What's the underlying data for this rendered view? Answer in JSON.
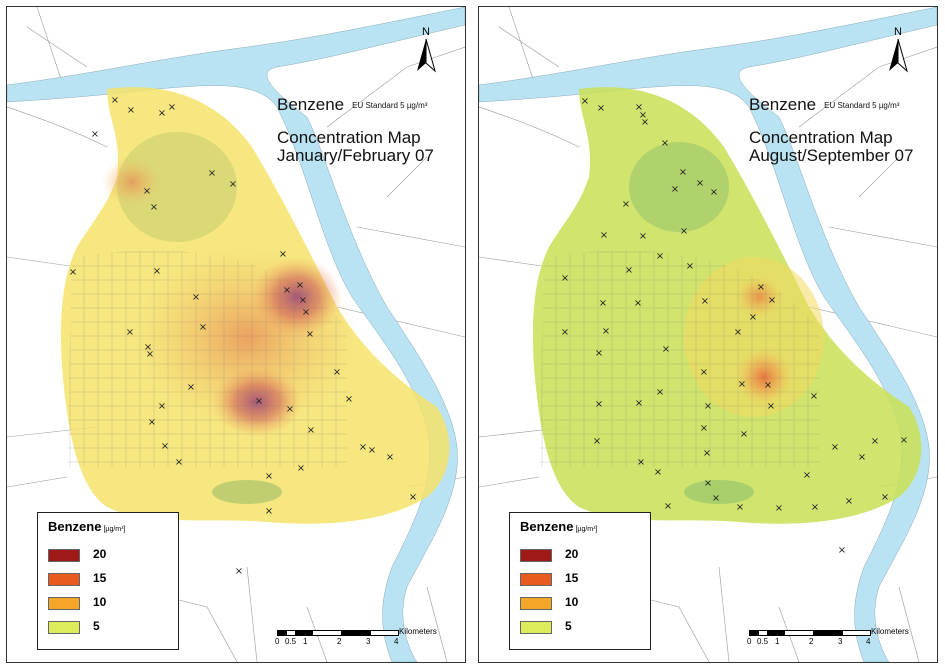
{
  "panels": [
    {
      "id": "left",
      "title": "Benzene",
      "standard": "EU Standard 5 µg/m³",
      "subtitle_1": "Concentration Map",
      "subtitle_2": "January/February 07",
      "north": "N",
      "legend": {
        "title": "Benzene",
        "unit": "[µg/m³]",
        "items": [
          {
            "label": "20",
            "color": "#a01818"
          },
          {
            "label": "15",
            "color": "#e85a1e"
          },
          {
            "label": "10",
            "color": "#f4a62a"
          },
          {
            "label": "5",
            "color": "#dcec5a"
          }
        ]
      },
      "scale": {
        "ticks": [
          "0",
          "0.5",
          "1",
          "2",
          "3",
          "4"
        ],
        "unit": "Kilometers"
      }
    },
    {
      "id": "right",
      "title": "Benzene",
      "standard": "EU Standard 5 µg/m³",
      "subtitle_1": "Concentration Map",
      "subtitle_2": "August/September 07",
      "north": "N",
      "legend": {
        "title": "Benzene",
        "unit": "[µg/m³]",
        "items": [
          {
            "label": "20",
            "color": "#a01818"
          },
          {
            "label": "15",
            "color": "#e85a1e"
          },
          {
            "label": "10",
            "color": "#f4a62a"
          },
          {
            "label": "5",
            "color": "#dcec5a"
          }
        ]
      },
      "scale": {
        "ticks": [
          "0",
          "0.5",
          "1",
          "2",
          "3",
          "4"
        ],
        "unit": "Kilometers"
      }
    }
  ],
  "colors": {
    "river": "#b9e3f2",
    "high": "#a01818",
    "mid": "#e85a1e",
    "low": "#f4a62a",
    "base": "#dcec5a"
  }
}
